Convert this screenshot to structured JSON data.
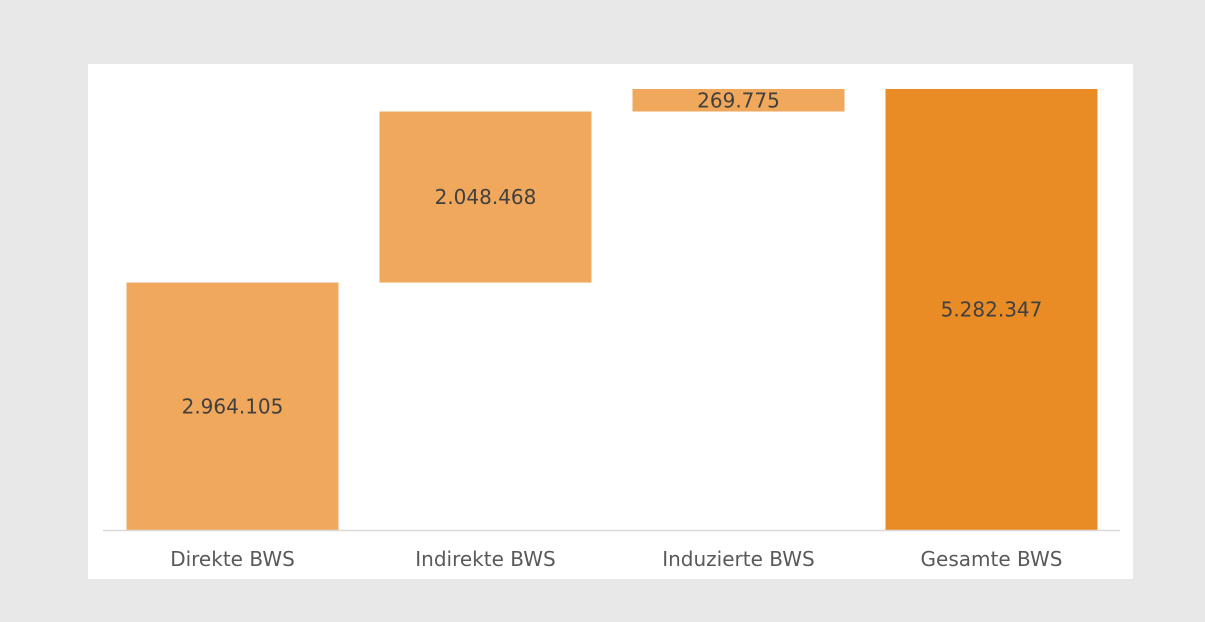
{
  "chart_data": {
    "type": "bar",
    "subtype": "waterfall",
    "title": "",
    "xlabel": "",
    "ylabel": "",
    "categories": [
      "Direkte BWS",
      "Indirekte BWS",
      "Induzierte BWS",
      "Gesamte BWS"
    ],
    "values": [
      2964105,
      2048468,
      269775,
      5282347
    ],
    "value_labels": [
      "2.964.105",
      "2.048.468",
      "269.775",
      "5.282.347"
    ],
    "is_total": [
      false,
      false,
      false,
      true
    ],
    "ylim": [
      0,
      5282347
    ],
    "grid": false,
    "legend": "none",
    "colors": {
      "increment": "#f0a85c",
      "total": "#e98c25",
      "axis": "#d9d9d9",
      "plot_background": "#ffffff",
      "outer_background": "#e8e8e8"
    }
  }
}
